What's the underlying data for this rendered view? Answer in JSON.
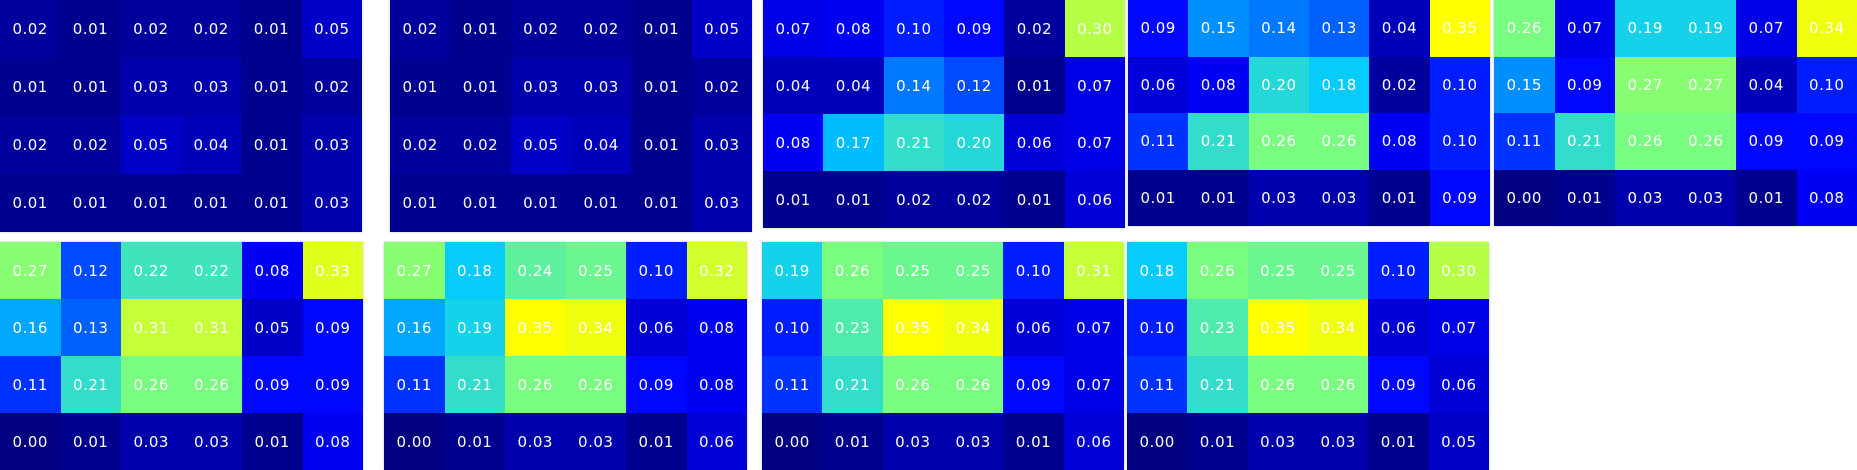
{
  "chart_data": [
    {
      "type": "heatmap",
      "values": [
        [
          0.02,
          0.01,
          0.02,
          0.02,
          0.01,
          0.05
        ],
        [
          0.01,
          0.01,
          0.03,
          0.03,
          0.01,
          0.02
        ],
        [
          0.02,
          0.02,
          0.05,
          0.04,
          0.01,
          0.03
        ],
        [
          0.01,
          0.01,
          0.01,
          0.01,
          0.01,
          0.03
        ]
      ]
    },
    {
      "type": "heatmap",
      "values": [
        [
          0.02,
          0.01,
          0.02,
          0.02,
          0.01,
          0.05
        ],
        [
          0.01,
          0.01,
          0.03,
          0.03,
          0.01,
          0.02
        ],
        [
          0.02,
          0.02,
          0.05,
          0.04,
          0.01,
          0.03
        ],
        [
          0.01,
          0.01,
          0.01,
          0.01,
          0.01,
          0.03
        ]
      ]
    },
    {
      "type": "heatmap",
      "values": [
        [
          0.07,
          0.08,
          0.1,
          0.09,
          0.02,
          0.3
        ],
        [
          0.04,
          0.04,
          0.14,
          0.12,
          0.01,
          0.07
        ],
        [
          0.08,
          0.17,
          0.21,
          0.2,
          0.06,
          0.07
        ],
        [
          0.01,
          0.01,
          0.02,
          0.02,
          0.01,
          0.06
        ]
      ]
    },
    {
      "type": "heatmap",
      "values": [
        [
          0.09,
          0.15,
          0.14,
          0.13,
          0.04,
          0.35
        ],
        [
          0.06,
          0.08,
          0.2,
          0.18,
          0.02,
          0.1
        ],
        [
          0.11,
          0.21,
          0.26,
          0.26,
          0.08,
          0.1
        ],
        [
          0.01,
          0.01,
          0.03,
          0.03,
          0.01,
          0.09
        ]
      ]
    },
    {
      "type": "heatmap",
      "values": [
        [
          0.26,
          0.07,
          0.19,
          0.19,
          0.07,
          0.34
        ],
        [
          0.15,
          0.09,
          0.27,
          0.27,
          0.04,
          0.1
        ],
        [
          0.11,
          0.21,
          0.26,
          0.26,
          0.09,
          0.09
        ],
        [
          0.0,
          0.01,
          0.03,
          0.03,
          0.01,
          0.08
        ]
      ]
    },
    {
      "type": "heatmap",
      "values": [
        [
          0.27,
          0.12,
          0.22,
          0.22,
          0.08,
          0.33
        ],
        [
          0.16,
          0.13,
          0.31,
          0.31,
          0.05,
          0.09
        ],
        [
          0.11,
          0.21,
          0.26,
          0.26,
          0.09,
          0.09
        ],
        [
          0.0,
          0.01,
          0.03,
          0.03,
          0.01,
          0.08
        ]
      ]
    },
    {
      "type": "heatmap",
      "values": [
        [
          0.27,
          0.18,
          0.24,
          0.25,
          0.1,
          0.32
        ],
        [
          0.16,
          0.19,
          0.35,
          0.34,
          0.06,
          0.08
        ],
        [
          0.11,
          0.21,
          0.26,
          0.26,
          0.09,
          0.08
        ],
        [
          0.0,
          0.01,
          0.03,
          0.03,
          0.01,
          0.06
        ]
      ]
    },
    {
      "type": "heatmap",
      "values": [
        [
          0.19,
          0.26,
          0.25,
          0.25,
          0.1,
          0.31
        ],
        [
          0.1,
          0.23,
          0.35,
          0.34,
          0.06,
          0.07
        ],
        [
          0.11,
          0.21,
          0.26,
          0.26,
          0.09,
          0.07
        ],
        [
          0.0,
          0.01,
          0.03,
          0.03,
          0.01,
          0.06
        ]
      ]
    },
    {
      "type": "heatmap",
      "values": [
        [
          0.18,
          0.26,
          0.25,
          0.25,
          0.1,
          0.3
        ],
        [
          0.1,
          0.23,
          0.35,
          0.34,
          0.06,
          0.07
        ],
        [
          0.11,
          0.21,
          0.26,
          0.26,
          0.09,
          0.06
        ],
        [
          0.0,
          0.01,
          0.03,
          0.03,
          0.01,
          0.05
        ]
      ]
    }
  ],
  "colormap": {
    "vmin": 0.0,
    "vmax": 0.35,
    "stops": [
      "#000080",
      "#0000ff",
      "#00c8ff",
      "#7dff7d",
      "#ffff00"
    ]
  }
}
